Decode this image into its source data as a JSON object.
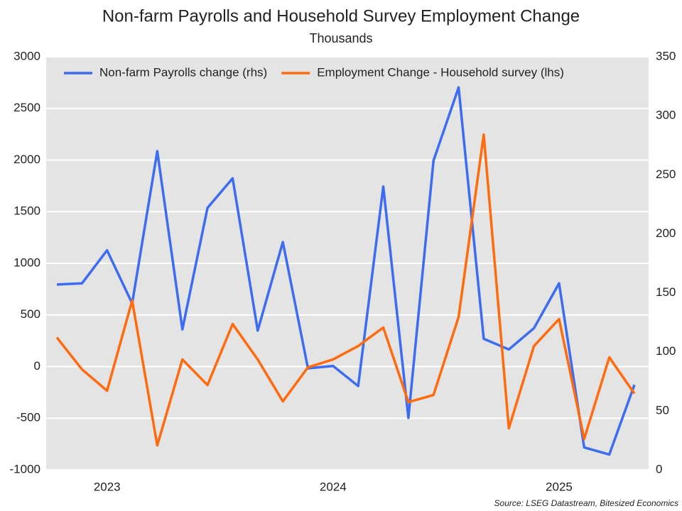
{
  "chart_data": {
    "type": "line",
    "title": "Non-farm Payrolls and Household Survey Employment Change",
    "subtitle": "Thousands",
    "source": "Source: LSEG Datastream, Bitesized Economics",
    "categories": [
      null,
      null,
      "2023",
      null,
      null,
      null,
      null,
      null,
      null,
      null,
      null,
      "2024",
      null,
      null,
      null,
      null,
      null,
      null,
      null,
      null,
      "2025",
      null,
      null,
      null
    ],
    "series": [
      {
        "name": "Non-farm Payrolls change (rhs)",
        "color": "#3b6cf2",
        "axis": "y2",
        "values": [
          157,
          158,
          186,
          141,
          270,
          119,
          222,
          247,
          118,
          193,
          86,
          88,
          71,
          240,
          44,
          262,
          324,
          111,
          102,
          120,
          158,
          19,
          13,
          72
        ]
      },
      {
        "name": "Employment Change - Household survey (lhs)",
        "color": "#ff6a0d",
        "axis": "y",
        "values": [
          282,
          -27,
          -234,
          639,
          -763,
          69,
          -179,
          412,
          69,
          -337,
          -7,
          69,
          199,
          378,
          -344,
          -275,
          481,
          2247,
          -598,
          199,
          460,
          -701,
          89,
          -261
        ]
      }
    ],
    "ylim": [
      -1000,
      3000
    ],
    "yticks": [
      -1000,
      -500,
      0,
      500,
      1000,
      1500,
      2000,
      2500,
      3000
    ],
    "y2lim": [
      0,
      350
    ],
    "y2ticks": [
      0,
      50,
      100,
      150,
      200,
      250,
      300,
      350
    ],
    "grid": true,
    "legend": "top"
  }
}
